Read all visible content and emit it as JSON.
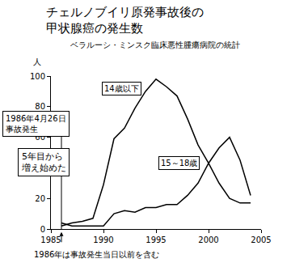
{
  "chart_data": {
    "type": "line",
    "title": "チェルノブイリ原発事故後の\n甲状腺癌の発生数",
    "subtitle": "ベラルーシ・ミンスク臨床悪性腫瘍病院の統計",
    "ylabel": "人",
    "x": [
      1986,
      1987,
      1988,
      1989,
      1990,
      1991,
      1992,
      1993,
      1994,
      1995,
      1996,
      1997,
      1998,
      1999,
      2000,
      2001,
      2002,
      2003,
      2004
    ],
    "series": [
      {
        "name": "14歳以下",
        "color": "#000000",
        "line_style": "solid",
        "values": [
          2,
          4,
          5,
          7,
          29,
          59,
          66,
          79,
          90,
          98,
          93,
          87,
          72,
          55,
          43,
          30,
          20,
          17,
          17
        ]
      },
      {
        "name": "15～18歳",
        "color": "#000000",
        "line_style": "solid",
        "values": [
          4,
          2,
          2,
          2,
          2,
          10,
          12,
          11,
          14,
          14,
          16,
          16,
          22,
          30,
          43,
          53,
          60,
          45,
          22
        ]
      }
    ],
    "xlim": [
      1985,
      2005
    ],
    "xticks": [
      1985,
      1990,
      1995,
      2000,
      2005
    ],
    "ylim": [
      0,
      100
    ],
    "yticks": [
      0,
      20,
      40,
      60,
      80,
      100
    ],
    "grid": false,
    "annotations": [
      "1986年4月26日\n事故発生",
      "5年目から\n増え始めた",
      "1986年は事故発生当日以前を含む"
    ]
  }
}
